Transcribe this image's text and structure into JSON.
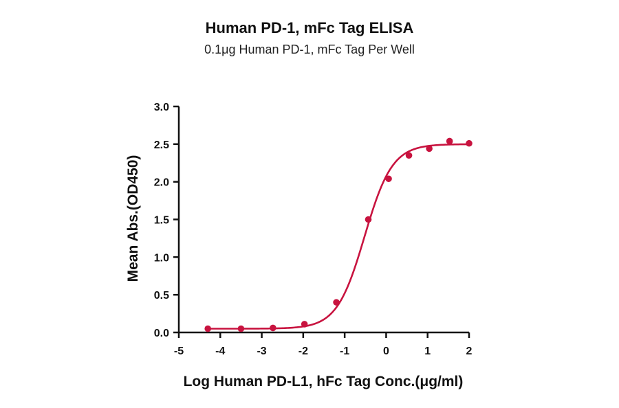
{
  "chart_data": {
    "type": "scatter",
    "title": "Human PD-1, mFc Tag ELISA",
    "subtitle": "0.1μg Human PD-1, mFc Tag Per Well",
    "xlabel": "Log Human PD-L1, hFc Tag Conc.(μg/ml)",
    "ylabel": "Mean Abs.(OD450)",
    "xlim": [
      -5,
      2
    ],
    "ylim": [
      0,
      3
    ],
    "x_ticks": [
      "-5",
      "-4",
      "-3",
      "-2",
      "-1",
      "0",
      "1",
      "2"
    ],
    "y_ticks": [
      "0.0",
      "0.5",
      "1.0",
      "1.5",
      "2.0",
      "2.5",
      "3.0"
    ],
    "grid": false,
    "series": [
      {
        "color": "#c8133f",
        "x": [
          -4.3,
          -3.5,
          -2.73,
          -1.97,
          -1.2,
          -0.43,
          0.06,
          0.55,
          1.04,
          1.53,
          2.0
        ],
        "y": [
          0.05,
          0.05,
          0.06,
          0.11,
          0.4,
          1.5,
          2.04,
          2.35,
          2.44,
          2.54,
          2.51
        ],
        "fit": {
          "model": "4PL",
          "bottom": 0.05,
          "top": 2.5,
          "log_ec50": -0.52,
          "hill": 1.3
        }
      }
    ]
  }
}
